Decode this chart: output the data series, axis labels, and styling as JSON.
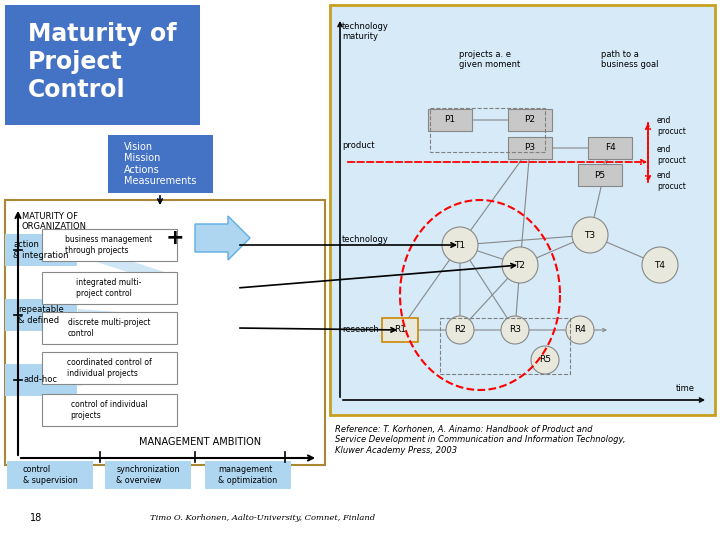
{
  "title": "Maturity of\nProject\nControl",
  "title_bg": "#4472C4",
  "vision_box_text": "Vision\nMission\nActions\nMeasurements",
  "vision_box_bg": "#4472C4",
  "maturity_label": "MATURITY OF\nORGANIZATION",
  "left_levels": [
    "action\n& integration",
    "repeatable\n& defined",
    "add-hoc"
  ],
  "left_level_bg": "#AED6F1",
  "center_boxes": [
    "business management\nthrough projects",
    "integrated multi-\nproject control",
    "discrete multi-project\ncontrol",
    "coordinated control of\nindividual projects",
    "control of individual\nprojects"
  ],
  "bottom_labels": [
    "control\n& supervision",
    "synchronization\n& overview",
    "management\n& optimization"
  ],
  "bottom_bg": "#AED6F1",
  "management_ambition": "MANAGEMENT AMBITION",
  "right_diagram_bg": "#D6EAF8",
  "right_border": "#C8A020",
  "reference_text": "Reference: T. Korhonen, A. Ainamo: Handbook of Product and\nService Development in Communication and Information Technology,\nKluwer Academy Press, 2003",
  "footer_num": "18",
  "footer_text": "Timo O. Korhonen, Aalto-University, Comnet, Finland",
  "bg_color": "white"
}
